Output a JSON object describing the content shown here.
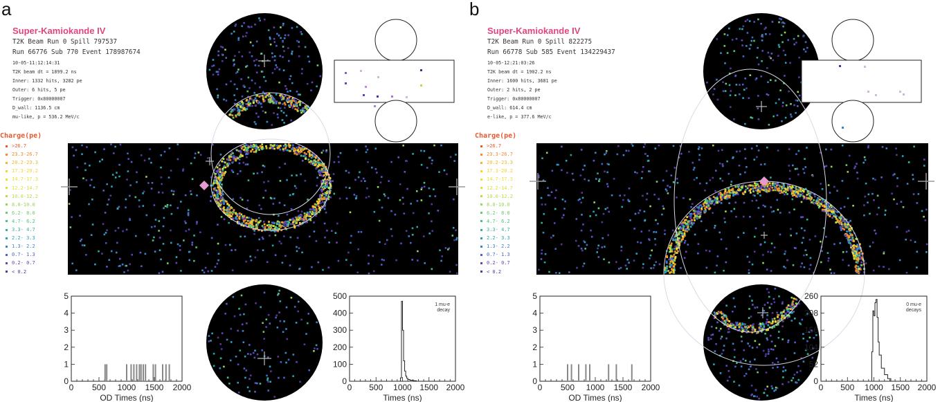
{
  "legend": {
    "title": "Charge(pe)",
    "bins": [
      {
        "label": ">26.7",
        "color": "#e8582d"
      },
      {
        "label": "23.3-26.7",
        "color": "#f08a2a"
      },
      {
        "label": "20.2-23.3",
        "color": "#f3b529"
      },
      {
        "label": "17.3-20.2",
        "color": "#f4d32a"
      },
      {
        "label": "14.7-17.3",
        "color": "#e7e22e"
      },
      {
        "label": "12.2-14.7",
        "color": "#d6e136"
      },
      {
        "label": "10.0-12.2",
        "color": "#b8dc45"
      },
      {
        "label": "8.0-10.0",
        "color": "#96d456"
      },
      {
        "label": "6.2- 8.0",
        "color": "#6ecb6c"
      },
      {
        "label": "4.7- 6.2",
        "color": "#48c083"
      },
      {
        "label": "3.3- 4.7",
        "color": "#2fb29b"
      },
      {
        "label": "2.2- 3.3",
        "color": "#2aa1b4"
      },
      {
        "label": "1.3- 2.2",
        "color": "#3a85c6"
      },
      {
        "label": "0.7- 1.3",
        "color": "#4c61c8"
      },
      {
        "label": "0.2- 0.7",
        "color": "#5c47b8"
      },
      {
        "label": "< 0.2",
        "color": "#55379a"
      }
    ]
  },
  "panels": [
    {
      "label": "a",
      "detector": "Super-Kamiokande IV",
      "info_big": [
        "T2K Beam Run 0 Spill 797537",
        "Run 66776 Sub 770 Event 178987674"
      ],
      "info_small": [
        "10-05-11:12:14:31",
        "T2K beam dt = 1899.2 ns",
        "Inner: 1332 hits, 3282 pe",
        "Outer: 6 hits, 5 pe",
        "Trigger: 0x80000007",
        "D_wall: 1136.5 cm",
        "mu-like, p = 536.2 MeV/c"
      ],
      "od_hist": {
        "xlabel": "OD Times (ns)",
        "ylim": [
          0,
          5
        ],
        "yticks": [
          "0",
          "1",
          "2",
          "3",
          "4",
          "5"
        ],
        "xticks": [
          "0",
          "500",
          "1000",
          "1500",
          "2000"
        ],
        "xlim": [
          0,
          2000
        ],
        "bars": [
          {
            "x": 610,
            "v": 1
          },
          {
            "x": 640,
            "v": 1
          },
          {
            "x": 1000,
            "v": 1
          },
          {
            "x": 1080,
            "v": 1
          },
          {
            "x": 1130,
            "v": 1
          },
          {
            "x": 1180,
            "v": 1
          },
          {
            "x": 1230,
            "v": 1
          },
          {
            "x": 1260,
            "v": 1
          },
          {
            "x": 1300,
            "v": 1
          },
          {
            "x": 1340,
            "v": 1
          },
          {
            "x": 1480,
            "v": 1
          },
          {
            "x": 1520,
            "v": 1
          },
          {
            "x": 1650,
            "v": 1
          },
          {
            "x": 1710,
            "v": 1
          },
          {
            "x": 1770,
            "v": 1
          }
        ]
      },
      "time_hist": {
        "xlabel": "Times (ns)",
        "ylim": [
          0,
          500
        ],
        "yticks": [
          "0",
          "100",
          "200",
          "300",
          "400",
          "500"
        ],
        "xticks": [
          "0",
          "500",
          "1000",
          "1500",
          "2000"
        ],
        "xlim": [
          0,
          2000
        ],
        "annotation": [
          "1 mu-e",
          "decay"
        ],
        "bins": [
          {
            "x": 940,
            "v": 0
          },
          {
            "x": 960,
            "v": 20
          },
          {
            "x": 980,
            "v": 470
          },
          {
            "x": 1000,
            "v": 300
          },
          {
            "x": 1020,
            "v": 120
          },
          {
            "x": 1040,
            "v": 60
          },
          {
            "x": 1060,
            "v": 30
          },
          {
            "x": 1080,
            "v": 18
          },
          {
            "x": 1100,
            "v": 10
          },
          {
            "x": 1140,
            "v": 6
          },
          {
            "x": 1200,
            "v": 3
          },
          {
            "x": 1260,
            "v": 0
          }
        ]
      }
    },
    {
      "label": "b",
      "detector": "Super-Kamiokande IV",
      "info_big": [
        "T2K Beam Run 0 Spill 822275",
        "Run 66778 Sub 585 Event 134229437"
      ],
      "info_small": [
        "10-05-12:21:03:26",
        "T2K beam dt = 1902.2 ns",
        "Inner: 1600 hits, 3681 pe",
        "Outer: 2 hits, 2 pe",
        "Trigger: 0x80000007",
        "D_wall: 614.4 cm",
        "e-like, p = 377.6 MeV/c"
      ],
      "od_hist": {
        "xlabel": "OD Times (ns)",
        "ylim": [
          0,
          5
        ],
        "yticks": [
          "0",
          "1",
          "2",
          "3",
          "4",
          "5"
        ],
        "xticks": [
          "0",
          "500",
          "1000",
          "1500",
          "2000"
        ],
        "xlim": [
          0,
          2000
        ],
        "bars": [
          {
            "x": 500,
            "v": 1
          },
          {
            "x": 570,
            "v": 1
          },
          {
            "x": 700,
            "v": 1
          },
          {
            "x": 830,
            "v": 1
          },
          {
            "x": 900,
            "v": 1
          },
          {
            "x": 1240,
            "v": 1
          },
          {
            "x": 1380,
            "v": 1
          },
          {
            "x": 1660,
            "v": 1
          }
        ]
      },
      "time_hist": {
        "xlabel": "Times (ns)",
        "ylim": [
          0,
          260
        ],
        "yticks": [
          "0",
          "52",
          "104",
          "156",
          "208",
          "260"
        ],
        "xticks": [
          "0",
          "500",
          "1000",
          "1500",
          "2000"
        ],
        "xlim": [
          0,
          2000
        ],
        "annotation": [
          "0 mu-e",
          "decays"
        ],
        "bins": [
          {
            "x": 940,
            "v": 0
          },
          {
            "x": 960,
            "v": 90
          },
          {
            "x": 980,
            "v": 215
          },
          {
            "x": 1000,
            "v": 200
          },
          {
            "x": 1020,
            "v": 240
          },
          {
            "x": 1040,
            "v": 250
          },
          {
            "x": 1060,
            "v": 195
          },
          {
            "x": 1080,
            "v": 120
          },
          {
            "x": 1100,
            "v": 80
          },
          {
            "x": 1140,
            "v": 40
          },
          {
            "x": 1200,
            "v": 20
          },
          {
            "x": 1260,
            "v": 8
          },
          {
            "x": 1320,
            "v": 0
          }
        ]
      }
    }
  ]
}
